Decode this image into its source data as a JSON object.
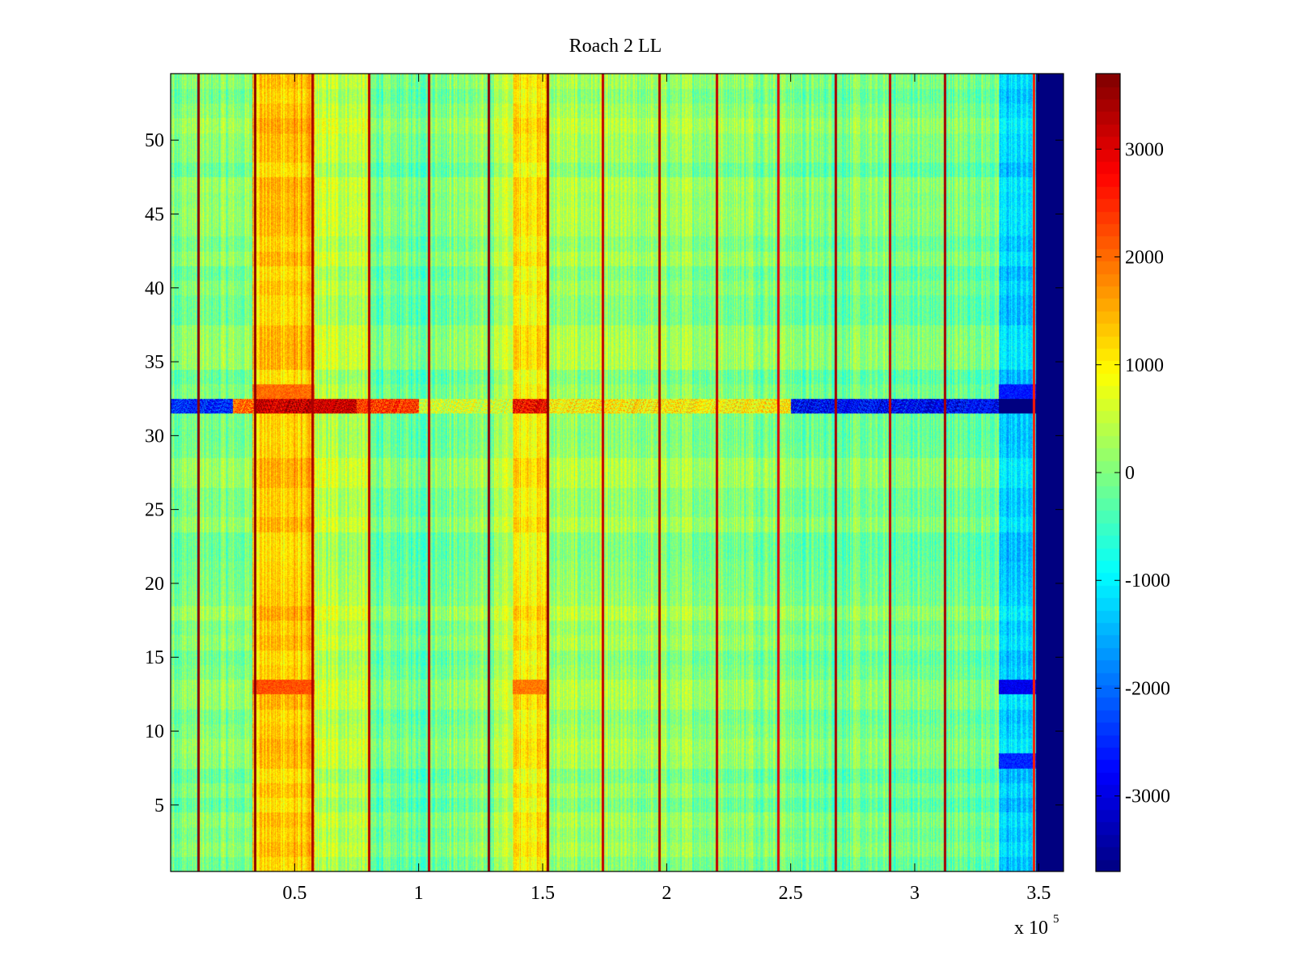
{
  "chart_data": {
    "type": "heatmap",
    "title": "Roach 2 LL",
    "xlabel": "",
    "ylabel": "",
    "x_exponent_label": "x 10",
    "x_exponent_power": "5",
    "xlim": [
      0,
      3.6
    ],
    "ylim": [
      0.5,
      54.5
    ],
    "x_ticks": [
      {
        "value": 0.5,
        "label": "0.5"
      },
      {
        "value": 1.0,
        "label": "1"
      },
      {
        "value": 1.5,
        "label": "1.5"
      },
      {
        "value": 2.0,
        "label": "2"
      },
      {
        "value": 2.5,
        "label": "2.5"
      },
      {
        "value": 3.0,
        "label": "3"
      },
      {
        "value": 3.5,
        "label": "3.5"
      }
    ],
    "y_ticks": [
      {
        "value": 5,
        "label": "5"
      },
      {
        "value": 10,
        "label": "10"
      },
      {
        "value": 15,
        "label": "15"
      },
      {
        "value": 20,
        "label": "20"
      },
      {
        "value": 25,
        "label": "25"
      },
      {
        "value": 30,
        "label": "30"
      },
      {
        "value": 35,
        "label": "35"
      },
      {
        "value": 40,
        "label": "40"
      },
      {
        "value": 45,
        "label": "45"
      },
      {
        "value": 50,
        "label": "50"
      }
    ],
    "colorbar": {
      "colormap": "jet",
      "clim": [
        -3700,
        3700
      ],
      "ticks": [
        {
          "value": 3000,
          "label": "3000"
        },
        {
          "value": 2000,
          "label": "2000"
        },
        {
          "value": 1000,
          "label": "1000"
        },
        {
          "value": 0,
          "label": "0"
        },
        {
          "value": -1000,
          "label": "-1000"
        },
        {
          "value": -2000,
          "label": "-2000"
        },
        {
          "value": -3000,
          "label": "-3000"
        }
      ]
    },
    "rows": 54,
    "baseline_value": -100,
    "column_bands": [
      {
        "x_start": 0.0,
        "x_end": 0.33,
        "value": 0
      },
      {
        "x_start": 0.33,
        "x_end": 0.58,
        "value": 1300
      },
      {
        "x_start": 0.58,
        "x_end": 0.8,
        "value": 400
      },
      {
        "x_start": 0.8,
        "x_end": 1.05,
        "value": -150
      },
      {
        "x_start": 1.05,
        "x_end": 1.3,
        "value": 0
      },
      {
        "x_start": 1.3,
        "x_end": 1.38,
        "value": 350
      },
      {
        "x_start": 1.38,
        "x_end": 1.52,
        "value": 1050
      },
      {
        "x_start": 1.52,
        "x_end": 1.75,
        "value": 200
      },
      {
        "x_start": 1.75,
        "x_end": 2.5,
        "value": 100
      },
      {
        "x_start": 2.5,
        "x_end": 3.34,
        "value": -100
      },
      {
        "x_start": 3.34,
        "x_end": 3.49,
        "value": -1250
      },
      {
        "x_start": 3.49,
        "x_end": 3.6,
        "value": -3700
      }
    ],
    "vertical_lines": [
      {
        "x": 0.11,
        "value": 3600
      },
      {
        "x": 0.34,
        "value": 3600
      },
      {
        "x": 0.57,
        "value": 3400
      },
      {
        "x": 0.8,
        "value": 3300
      },
      {
        "x": 1.04,
        "value": 3300
      },
      {
        "x": 1.28,
        "value": 3600
      },
      {
        "x": 1.52,
        "value": 3600
      },
      {
        "x": 1.74,
        "value": 3200
      },
      {
        "x": 1.97,
        "value": 3400
      },
      {
        "x": 2.2,
        "value": 3200
      },
      {
        "x": 2.45,
        "value": 3000
      },
      {
        "x": 2.68,
        "value": 3400
      },
      {
        "x": 2.9,
        "value": 3200
      },
      {
        "x": 3.12,
        "value": 3400
      },
      {
        "x": 3.48,
        "value": 2600
      }
    ],
    "highlight_row": {
      "y": 32,
      "segments": [
        {
          "x_start": 0.0,
          "x_end": 0.25,
          "value": -2500
        },
        {
          "x_start": 0.25,
          "x_end": 0.34,
          "value": 2000
        },
        {
          "x_start": 0.34,
          "x_end": 0.75,
          "value": 3200
        },
        {
          "x_start": 0.75,
          "x_end": 1.0,
          "value": 2400
        },
        {
          "x_start": 1.0,
          "x_end": 1.38,
          "value": 600
        },
        {
          "x_start": 1.38,
          "x_end": 1.52,
          "value": 2800
        },
        {
          "x_start": 1.52,
          "x_end": 2.5,
          "value": 1000
        },
        {
          "x_start": 2.5,
          "x_end": 3.34,
          "value": -2800
        },
        {
          "x_start": 3.34,
          "x_end": 3.6,
          "value": -3700
        }
      ]
    },
    "row_anomalies": [
      {
        "y": 13,
        "x_start": 0.33,
        "x_end": 0.58,
        "value": 2200
      },
      {
        "y": 13,
        "x_start": 1.38,
        "x_end": 1.52,
        "value": 1900
      },
      {
        "y": 13,
        "x_start": 3.34,
        "x_end": 3.49,
        "value": -2900
      },
      {
        "y": 8,
        "x_start": 3.34,
        "x_end": 3.49,
        "value": -2500
      },
      {
        "y": 33,
        "x_start": 0.33,
        "x_end": 0.58,
        "value": 2000
      },
      {
        "y": 33,
        "x_start": 3.34,
        "x_end": 3.49,
        "value": -2600
      }
    ]
  }
}
